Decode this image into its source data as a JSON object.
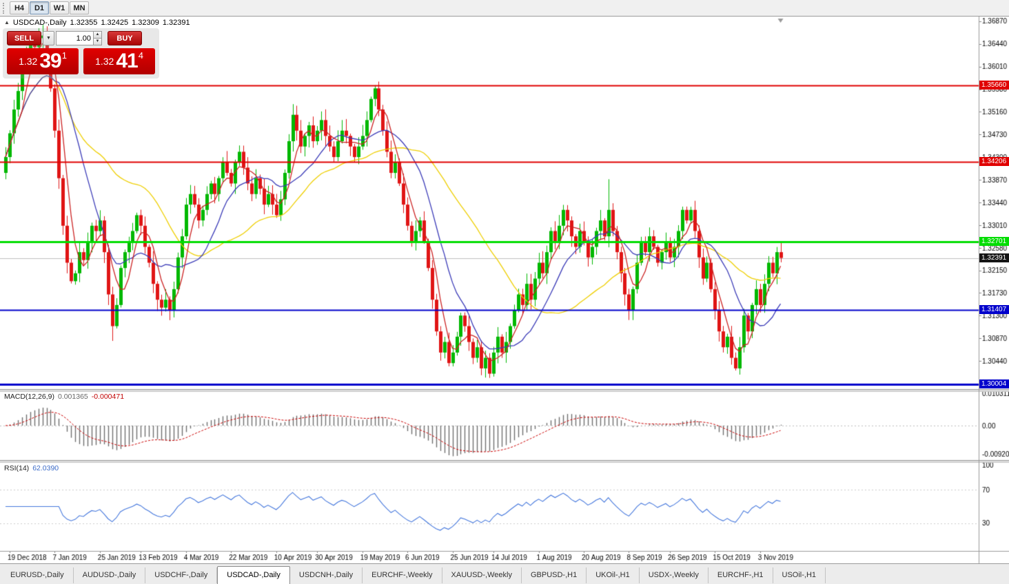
{
  "toolbar": {
    "timeframes": [
      {
        "label": "H4",
        "active": false
      },
      {
        "label": "D1",
        "active": true
      },
      {
        "label": "W1",
        "active": false
      },
      {
        "label": "MN",
        "active": false
      }
    ]
  },
  "chart_header": {
    "symbol_title": "USDCAD-,Daily",
    "open": "1.32355",
    "high": "1.32425",
    "low": "1.32309",
    "close": "1.32391"
  },
  "trade_panel": {
    "sell_label": "SELL",
    "buy_label": "BUY",
    "volume": "1.00",
    "bid_small": "1.32",
    "bid_big": "39",
    "bid_sup": "1",
    "ask_small": "1.32",
    "ask_big": "41",
    "ask_sup": "4"
  },
  "chart_data": {
    "type": "candlestick",
    "symbol": "USDCAD-",
    "timeframe": "Daily",
    "colors": {
      "up": "#00b800",
      "down": "#e01515",
      "bid_line": "#c0c0c0",
      "bid_tag": "#151515"
    },
    "price_axis": {
      "min": 1.2996,
      "max": 1.3696,
      "ticks": [
        "1.36870",
        "1.36440",
        "1.36010",
        "1.35580",
        "1.35160",
        "1.34730",
        "1.34300",
        "1.33870",
        "1.33440",
        "1.33010",
        "1.32580",
        "1.32150",
        "1.31730",
        "1.31300",
        "1.30870",
        "1.30440"
      ]
    },
    "hlines": [
      {
        "price": 1.3566,
        "label": "1.35660",
        "color": "#e00000",
        "width": 2
      },
      {
        "price": 1.34206,
        "label": "1.34206",
        "color": "#e00000",
        "width": 2
      },
      {
        "price": 1.32701,
        "label": "1.32701",
        "color": "#00dd00",
        "width": 3
      },
      {
        "price": 1.31407,
        "label": "1.31407",
        "color": "#0000cc",
        "width": 2
      },
      {
        "price": 1.30004,
        "label": "1.30004",
        "color": "#0000cc",
        "width": 3
      }
    ],
    "bid": {
      "price": 1.32391,
      "label": "1.32391"
    },
    "open_first": 1.34,
    "closes": [
      1.343,
      1.3475,
      1.352,
      1.3555,
      1.36,
      1.3625,
      1.3645,
      1.3638,
      1.3655,
      1.366,
      1.362,
      1.356,
      1.348,
      1.339,
      1.33,
      1.323,
      1.3195,
      1.321,
      1.325,
      1.3235,
      1.327,
      1.33,
      1.329,
      1.331,
      1.325,
      1.317,
      1.311,
      1.315,
      1.322,
      1.325,
      1.327,
      1.329,
      1.332,
      1.33,
      1.326,
      1.323,
      1.319,
      1.316,
      1.3145,
      1.316,
      1.314,
      1.318,
      1.324,
      1.328,
      1.334,
      1.336,
      1.334,
      1.331,
      1.333,
      1.336,
      1.338,
      1.336,
      1.339,
      1.342,
      1.34,
      1.338,
      1.342,
      1.344,
      1.341,
      1.338,
      1.336,
      1.339,
      1.337,
      1.334,
      1.336,
      1.334,
      1.332,
      1.335,
      1.34,
      1.346,
      1.351,
      1.348,
      1.345,
      1.347,
      1.349,
      1.346,
      1.348,
      1.35,
      1.347,
      1.345,
      1.343,
      1.346,
      1.348,
      1.347,
      1.345,
      1.343,
      1.345,
      1.347,
      1.35,
      1.354,
      1.356,
      1.352,
      1.348,
      1.344,
      1.34,
      1.342,
      1.338,
      1.334,
      1.33,
      1.327,
      1.329,
      1.331,
      1.327,
      1.322,
      1.316,
      1.31,
      1.306,
      1.308,
      1.304,
      1.306,
      1.309,
      1.313,
      1.311,
      1.308,
      1.305,
      1.307,
      1.303,
      1.305,
      1.302,
      1.306,
      1.309,
      1.306,
      1.308,
      1.311,
      1.314,
      1.317,
      1.315,
      1.319,
      1.316,
      1.32,
      1.323,
      1.321,
      1.325,
      1.329,
      1.327,
      1.33,
      1.333,
      1.331,
      1.328,
      1.326,
      1.329,
      1.327,
      1.324,
      1.326,
      1.329,
      1.331,
      1.328,
      1.333,
      1.329,
      1.325,
      1.321,
      1.317,
      1.314,
      1.318,
      1.323,
      1.327,
      1.325,
      1.328,
      1.326,
      1.323,
      1.325,
      1.327,
      1.324,
      1.326,
      1.329,
      1.333,
      1.331,
      1.333,
      1.329,
      1.324,
      1.32,
      1.323,
      1.318,
      1.314,
      1.31,
      1.307,
      1.309,
      1.305,
      1.303,
      1.307,
      1.313,
      1.31,
      1.315,
      1.318,
      1.315,
      1.319,
      1.323,
      1.321,
      1.325,
      1.32391
    ],
    "wick_overrides": {
      "9": {
        "h": 1.368
      },
      "26": {
        "l": 1.3082
      },
      "90": {
        "h": 1.3566
      },
      "118": {
        "l": 1.3012
      },
      "147": {
        "h": 1.3388
      },
      "178": {
        "l": 1.3026
      }
    },
    "ma": [
      {
        "period": 34,
        "color": "#efcf00"
      },
      {
        "period": 13,
        "color": "#3b3bb8"
      },
      {
        "period": 5,
        "color": "#cc2222"
      }
    ],
    "date_labels": [
      [
        1,
        "19 Dec 2018"
      ],
      [
        12,
        "7 Jan 2019"
      ],
      [
        23,
        "25 Jan 2019"
      ],
      [
        33,
        "13 Feb 2019"
      ],
      [
        44,
        "4 Mar 2019"
      ],
      [
        55,
        "22 Mar 2019"
      ],
      [
        66,
        "10 Apr 2019"
      ],
      [
        76,
        "30 Apr 2019"
      ],
      [
        87,
        "19 May 2019"
      ],
      [
        98,
        "6 Jun 2019"
      ],
      [
        109,
        "25 Jun 2019"
      ],
      [
        119,
        "14 Jul 2019"
      ],
      [
        130,
        "1 Aug 2019"
      ],
      [
        141,
        "20 Aug 2019"
      ],
      [
        152,
        "8 Sep 2019"
      ],
      [
        162,
        "26 Sep 2019"
      ],
      [
        173,
        "15 Oct 2019"
      ],
      [
        184,
        "3 Nov 2019"
      ]
    ],
    "macd_panel": {
      "title": "MACD(12,26,9)",
      "value_main": "0.001365",
      "value_signal": "-0.000471",
      "scale": [
        "0.010311",
        "0.00",
        "-0.009203"
      ],
      "range": [
        -0.0112,
        0.0112
      ],
      "params": [
        12,
        26,
        9
      ]
    },
    "rsi_panel": {
      "title": "RSI(14)",
      "value": "62.0390",
      "period": 14,
      "color": "#4477dd",
      "scale": [
        "100",
        "70",
        "30"
      ],
      "levels": [
        70,
        30
      ]
    }
  },
  "tabs": [
    {
      "label": "EURUSD-,Daily",
      "active": false
    },
    {
      "label": "AUDUSD-,Daily",
      "active": false
    },
    {
      "label": "USDCHF-,Daily",
      "active": false
    },
    {
      "label": "USDCAD-,Daily",
      "active": true
    },
    {
      "label": "USDCNH-,Daily",
      "active": false
    },
    {
      "label": "EURCHF-,Weekly",
      "active": false
    },
    {
      "label": "XAUUSD-,Weekly",
      "active": false
    },
    {
      "label": "GBPUSD-,H1",
      "active": false
    },
    {
      "label": "UKOil-,H1",
      "active": false
    },
    {
      "label": "USDX-,Weekly",
      "active": false
    },
    {
      "label": "EURCHF-,H1",
      "active": false
    },
    {
      "label": "USOil-,H1",
      "active": false
    }
  ]
}
